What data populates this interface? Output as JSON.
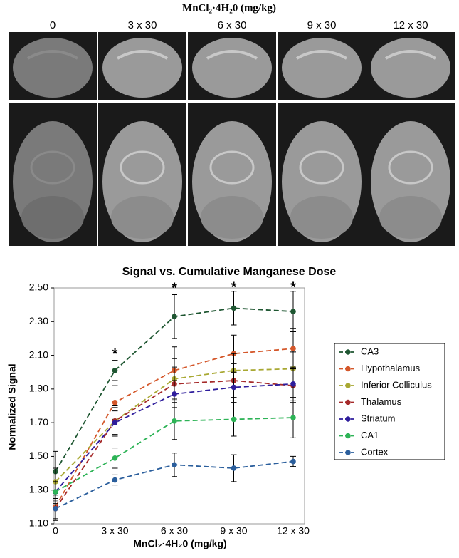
{
  "figure": {
    "title": "MnCl₂·4H₂0 (mg/kg)",
    "columns": [
      "0",
      "3 x 30",
      "6 x 30",
      "9 x 30",
      "12 x 30"
    ]
  },
  "chart_data": {
    "type": "line",
    "title": "Signal vs. Cumulative Manganese Dose",
    "x_label": "MnCl₂·4H₂0 (mg/kg)",
    "y_label": "Normalized Signal",
    "categories": [
      "0",
      "3 x 30",
      "6 x 30",
      "9 x 30",
      "12 x 30"
    ],
    "ylim": [
      1.1,
      2.5
    ],
    "yticks": [
      {
        "value": 1.1,
        "label": "1.10"
      },
      {
        "value": 1.3,
        "label": "1.30"
      },
      {
        "value": 1.5,
        "label": "1.50"
      },
      {
        "value": 1.7,
        "label": "1.70"
      },
      {
        "value": 1.9,
        "label": "1.90"
      },
      {
        "value": 2.1,
        "label": "2.10"
      },
      {
        "value": 2.3,
        "label": "2.30"
      },
      {
        "value": 2.5,
        "label": "2.50"
      }
    ],
    "markers": [
      null,
      "*",
      "*",
      "*",
      "*"
    ],
    "series": [
      {
        "name": "CA3",
        "color": "#1e5631",
        "values": [
          1.41,
          2.01,
          2.33,
          2.38,
          2.36
        ],
        "errors": [
          0.12,
          0.06,
          0.13,
          0.1,
          0.12
        ]
      },
      {
        "name": "Hypothalamus",
        "color": "#d4572a",
        "values": [
          1.2,
          1.82,
          2.01,
          2.11,
          2.14
        ],
        "errors": [
          0.08,
          0.1,
          0.14,
          0.11,
          0.12
        ]
      },
      {
        "name": "Inferior Colliculus",
        "color": "#a8a832",
        "values": [
          1.35,
          1.71,
          1.96,
          2.01,
          2.02
        ],
        "errors": [
          0.08,
          0.09,
          0.12,
          0.1,
          0.1
        ]
      },
      {
        "name": "Thalamus",
        "color": "#a52a2a",
        "values": [
          1.19,
          1.71,
          1.93,
          1.95,
          1.92
        ],
        "errors": [
          0.06,
          0.08,
          0.1,
          0.1,
          0.1
        ]
      },
      {
        "name": "Striatum",
        "color": "#2e1d9c",
        "values": [
          1.29,
          1.7,
          1.87,
          1.91,
          1.93
        ],
        "errors": [
          0.06,
          0.07,
          0.08,
          0.09,
          0.1
        ]
      },
      {
        "name": "CA1",
        "color": "#2db356",
        "values": [
          1.29,
          1.49,
          1.71,
          1.72,
          1.73
        ],
        "errors": [
          0.07,
          0.06,
          0.11,
          0.1,
          0.12
        ]
      },
      {
        "name": "Cortex",
        "color": "#2a5e9c",
        "values": [
          1.19,
          1.36,
          1.45,
          1.43,
          1.47
        ],
        "errors": [
          0.05,
          0.03,
          0.07,
          0.08,
          0.03
        ]
      }
    ]
  }
}
